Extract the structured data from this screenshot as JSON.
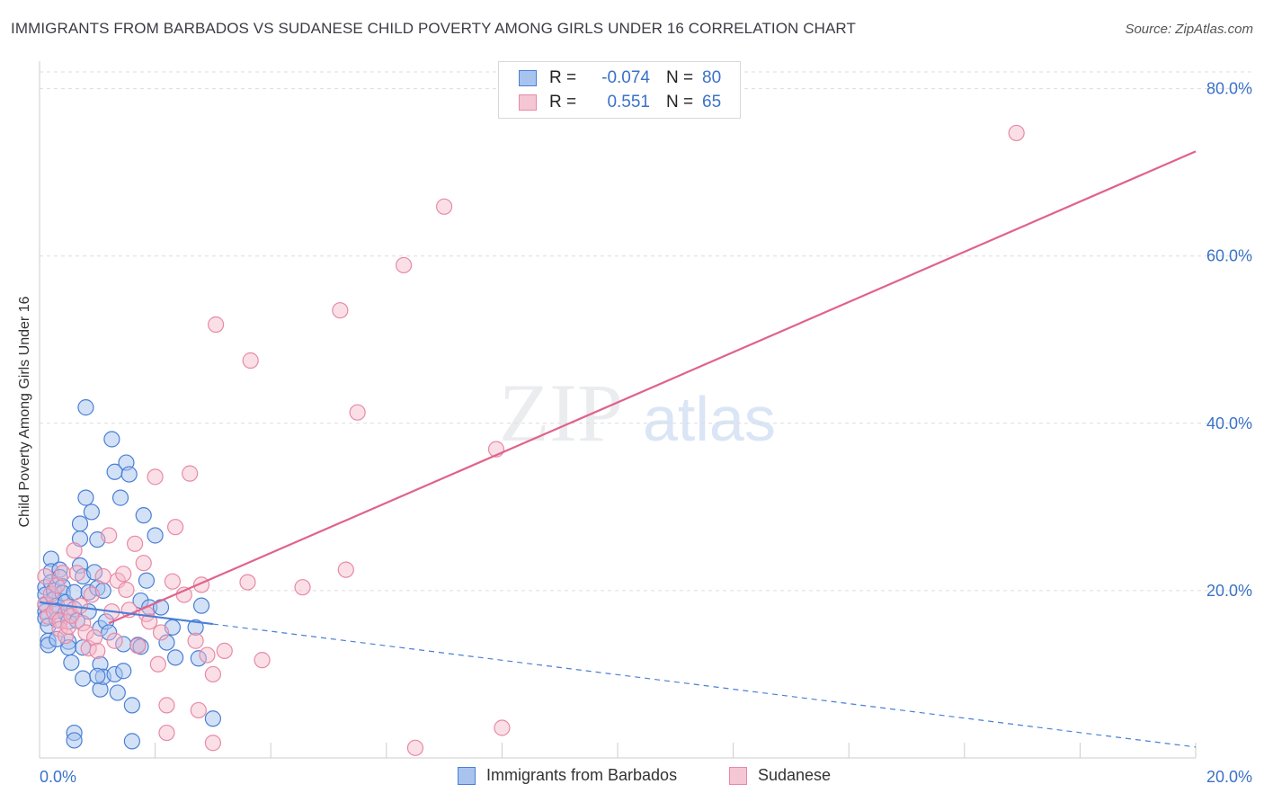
{
  "title": "IMMIGRANTS FROM BARBADOS VS SUDANESE CHILD POVERTY AMONG GIRLS UNDER 16 CORRELATION CHART",
  "source": "Source: ZipAtlas.com",
  "watermark": {
    "zip": "ZIP",
    "atlas": "atlas"
  },
  "colors": {
    "blue": "#4a7fd6",
    "blue_fill": "#a8c4ee",
    "pink": "#e0628a",
    "pink_fill": "#f5b8ca",
    "axis_label": "#3a72c8",
    "grid": "#dddddd"
  },
  "legend": {
    "series1": {
      "r_label": "R =",
      "r_value": "-0.074",
      "n_label": "N =",
      "n_value": "80"
    },
    "series2": {
      "r_label": "R =",
      "r_value": "0.551",
      "n_label": "N =",
      "n_value": "65"
    }
  },
  "bottom_legend": {
    "series1": "Immigrants from Barbados",
    "series2": "Sudanese"
  },
  "chart_data": {
    "type": "scatter",
    "title": "IMMIGRANTS FROM BARBADOS VS SUDANESE CHILD POVERTY AMONG GIRLS UNDER 16 CORRELATION CHART",
    "xlabel": "",
    "ylabel": "Child Poverty Among Girls Under 16",
    "xlim": [
      0,
      20
    ],
    "ylim": [
      0,
      82
    ],
    "x_tick_labels": [
      "0.0%",
      "20.0%"
    ],
    "y_ticks": [
      20,
      40,
      60,
      80
    ],
    "y_tick_labels": [
      "20.0%",
      "40.0%",
      "60.0%",
      "80.0%"
    ],
    "series": [
      {
        "name": "Immigrants from Barbados",
        "r": -0.074,
        "n": 80,
        "trend": {
          "x0": 0,
          "y0": 18.6,
          "x1": 20,
          "y1": 1.3,
          "solid_until_x": 3.0
        },
        "points": [
          [
            0.1,
            20.4
          ],
          [
            0.1,
            19.5
          ],
          [
            0.1,
            18.3
          ],
          [
            0.1,
            17.5
          ],
          [
            0.1,
            16.7
          ],
          [
            0.15,
            15.8
          ],
          [
            0.15,
            14.0
          ],
          [
            0.15,
            13.5
          ],
          [
            0.2,
            23.8
          ],
          [
            0.2,
            22.3
          ],
          [
            0.2,
            21.0
          ],
          [
            0.25,
            20.0
          ],
          [
            0.25,
            19.0
          ],
          [
            0.3,
            18.2
          ],
          [
            0.3,
            17.6
          ],
          [
            0.3,
            16.5
          ],
          [
            0.35,
            22.5
          ],
          [
            0.35,
            21.6
          ],
          [
            0.4,
            20.5
          ],
          [
            0.4,
            19.7
          ],
          [
            0.45,
            18.6
          ],
          [
            0.45,
            17.3
          ],
          [
            0.5,
            16.3
          ],
          [
            0.5,
            13.9
          ],
          [
            0.5,
            13.2
          ],
          [
            0.55,
            11.4
          ],
          [
            0.6,
            19.8
          ],
          [
            0.6,
            17.8
          ],
          [
            0.65,
            16.4
          ],
          [
            0.7,
            28.0
          ],
          [
            0.7,
            26.2
          ],
          [
            0.7,
            23.0
          ],
          [
            0.75,
            21.7
          ],
          [
            0.75,
            13.2
          ],
          [
            0.75,
            9.5
          ],
          [
            0.8,
            41.9
          ],
          [
            0.8,
            31.1
          ],
          [
            0.85,
            19.8
          ],
          [
            0.85,
            17.5
          ],
          [
            0.9,
            29.4
          ],
          [
            0.95,
            22.2
          ],
          [
            1.0,
            26.1
          ],
          [
            1.0,
            20.3
          ],
          [
            1.05,
            15.5
          ],
          [
            1.05,
            11.2
          ],
          [
            1.05,
            8.2
          ],
          [
            1.1,
            20.0
          ],
          [
            1.1,
            9.7
          ],
          [
            1.15,
            16.3
          ],
          [
            1.2,
            15.0
          ],
          [
            1.25,
            38.1
          ],
          [
            1.3,
            34.2
          ],
          [
            1.3,
            10.0
          ],
          [
            1.35,
            7.8
          ],
          [
            1.4,
            31.1
          ],
          [
            1.45,
            13.6
          ],
          [
            1.45,
            10.4
          ],
          [
            1.5,
            35.3
          ],
          [
            1.55,
            33.9
          ],
          [
            1.6,
            6.3
          ],
          [
            1.6,
            2.0
          ],
          [
            1.7,
            13.5
          ],
          [
            1.75,
            18.8
          ],
          [
            1.75,
            13.3
          ],
          [
            1.8,
            29.0
          ],
          [
            1.85,
            21.2
          ],
          [
            1.9,
            18.0
          ],
          [
            2.0,
            26.6
          ],
          [
            2.1,
            18.0
          ],
          [
            2.2,
            13.8
          ],
          [
            2.3,
            15.6
          ],
          [
            2.35,
            12.0
          ],
          [
            2.7,
            15.6
          ],
          [
            2.75,
            11.9
          ],
          [
            2.8,
            18.2
          ],
          [
            3.0,
            4.7
          ],
          [
            0.6,
            3.0
          ],
          [
            0.6,
            2.1
          ],
          [
            1.0,
            9.8
          ],
          [
            0.3,
            14.2
          ]
        ]
      },
      {
        "name": "Sudanese",
        "r": 0.551,
        "n": 65,
        "trend": {
          "x0": 0,
          "y0": 12.5,
          "x1": 20,
          "y1": 72.5
        },
        "points": [
          [
            0.1,
            21.7
          ],
          [
            0.1,
            18.4
          ],
          [
            0.15,
            16.9
          ],
          [
            0.2,
            19.6
          ],
          [
            0.25,
            17.5
          ],
          [
            0.3,
            20.6
          ],
          [
            0.35,
            16.4
          ],
          [
            0.35,
            15.4
          ],
          [
            0.4,
            22.1
          ],
          [
            0.45,
            14.6
          ],
          [
            0.5,
            18.0
          ],
          [
            0.5,
            15.7
          ],
          [
            0.55,
            17.0
          ],
          [
            0.6,
            24.8
          ],
          [
            0.65,
            22.1
          ],
          [
            0.7,
            18.2
          ],
          [
            0.75,
            16.1
          ],
          [
            0.8,
            15.0
          ],
          [
            0.85,
            13.1
          ],
          [
            0.9,
            19.5
          ],
          [
            0.95,
            14.4
          ],
          [
            1.0,
            12.8
          ],
          [
            1.1,
            21.7
          ],
          [
            1.2,
            26.6
          ],
          [
            1.25,
            17.5
          ],
          [
            1.3,
            14.0
          ],
          [
            1.35,
            21.2
          ],
          [
            1.45,
            22.0
          ],
          [
            1.5,
            20.1
          ],
          [
            1.55,
            17.7
          ],
          [
            1.65,
            25.6
          ],
          [
            1.7,
            13.4
          ],
          [
            1.8,
            23.3
          ],
          [
            1.85,
            17.2
          ],
          [
            1.9,
            16.3
          ],
          [
            2.0,
            33.6
          ],
          [
            2.05,
            11.2
          ],
          [
            2.1,
            15.0
          ],
          [
            2.2,
            6.3
          ],
          [
            2.2,
            3.0
          ],
          [
            2.3,
            21.1
          ],
          [
            2.35,
            27.6
          ],
          [
            2.5,
            19.5
          ],
          [
            2.6,
            34.0
          ],
          [
            2.7,
            14.0
          ],
          [
            2.75,
            5.7
          ],
          [
            2.8,
            20.7
          ],
          [
            2.9,
            12.3
          ],
          [
            3.0,
            10.0
          ],
          [
            3.05,
            51.8
          ],
          [
            3.2,
            12.8
          ],
          [
            3.6,
            21.0
          ],
          [
            3.65,
            47.5
          ],
          [
            3.85,
            11.7
          ],
          [
            4.55,
            20.4
          ],
          [
            5.2,
            53.5
          ],
          [
            5.3,
            22.5
          ],
          [
            5.5,
            41.3
          ],
          [
            6.3,
            58.9
          ],
          [
            6.5,
            1.2
          ],
          [
            7.0,
            65.9
          ],
          [
            7.9,
            36.9
          ],
          [
            8.0,
            3.6
          ],
          [
            16.9,
            74.7
          ],
          [
            3.0,
            1.8
          ]
        ]
      }
    ]
  }
}
